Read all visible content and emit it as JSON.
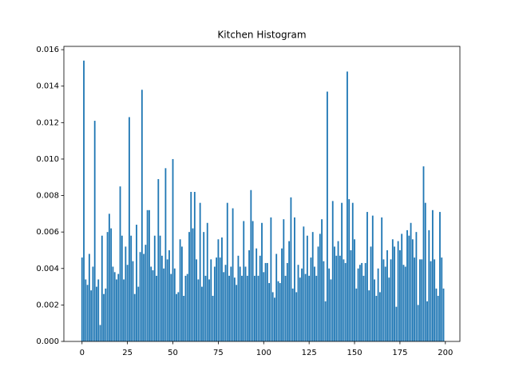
{
  "chart_data": {
    "type": "bar",
    "title": "Kitchen Histogram",
    "color": "#1f77b4",
    "bar_width": 0.8,
    "x": [
      0,
      1,
      2,
      3,
      4,
      5,
      6,
      7,
      8,
      9,
      10,
      11,
      12,
      13,
      14,
      15,
      16,
      17,
      18,
      19,
      20,
      21,
      22,
      23,
      24,
      25,
      26,
      27,
      28,
      29,
      30,
      31,
      32,
      33,
      34,
      35,
      36,
      37,
      38,
      39,
      40,
      41,
      42,
      43,
      44,
      45,
      46,
      47,
      48,
      49,
      50,
      51,
      52,
      53,
      54,
      55,
      56,
      57,
      58,
      59,
      60,
      61,
      62,
      63,
      64,
      65,
      66,
      67,
      68,
      69,
      70,
      71,
      72,
      73,
      74,
      75,
      76,
      77,
      78,
      79,
      80,
      81,
      82,
      83,
      84,
      85,
      86,
      87,
      88,
      89,
      90,
      91,
      92,
      93,
      94,
      95,
      96,
      97,
      98,
      99,
      100,
      101,
      102,
      103,
      104,
      105,
      106,
      107,
      108,
      109,
      110,
      111,
      112,
      113,
      114,
      115,
      116,
      117,
      118,
      119,
      120,
      121,
      122,
      123,
      124,
      125,
      126,
      127,
      128,
      129,
      130,
      131,
      132,
      133,
      134,
      135,
      136,
      137,
      138,
      139,
      140,
      141,
      142,
      143,
      144,
      145,
      146,
      147,
      148,
      149,
      150,
      151,
      152,
      153,
      154,
      155,
      156,
      157,
      158,
      159,
      160,
      161,
      162,
      163,
      164,
      165,
      166,
      167,
      168,
      169,
      170,
      171,
      172,
      173,
      174,
      175,
      176,
      177,
      178,
      179,
      180,
      181,
      182,
      183,
      184,
      185,
      186,
      187,
      188,
      189,
      190,
      191,
      192,
      193,
      194,
      195,
      196,
      197,
      198,
      199
    ],
    "values": [
      0.0046,
      0.0154,
      0.0034,
      0.0031,
      0.0048,
      0.0028,
      0.0041,
      0.0121,
      0.003,
      0.0034,
      0.0009,
      0.0058,
      0.0026,
      0.0029,
      0.006,
      0.007,
      0.0062,
      0.0041,
      0.0038,
      0.0034,
      0.0037,
      0.0085,
      0.0058,
      0.0034,
      0.0052,
      0.0042,
      0.0123,
      0.0058,
      0.0044,
      0.0026,
      0.0064,
      0.003,
      0.0049,
      0.0138,
      0.0048,
      0.0053,
      0.0072,
      0.0072,
      0.0041,
      0.0039,
      0.0058,
      0.0036,
      0.0089,
      0.0058,
      0.0047,
      0.004,
      0.0095,
      0.0045,
      0.005,
      0.0037,
      0.01,
      0.004,
      0.0026,
      0.0027,
      0.0056,
      0.0052,
      0.0025,
      0.0036,
      0.0037,
      0.006,
      0.0082,
      0.0062,
      0.0082,
      0.0045,
      0.0034,
      0.0076,
      0.003,
      0.006,
      0.0036,
      0.0065,
      0.0034,
      0.0045,
      0.0025,
      0.0041,
      0.0046,
      0.0056,
      0.0046,
      0.0057,
      0.0038,
      0.0042,
      0.0076,
      0.0036,
      0.0041,
      0.0073,
      0.0035,
      0.0031,
      0.0047,
      0.0041,
      0.0036,
      0.0066,
      0.0041,
      0.0036,
      0.005,
      0.0083,
      0.0066,
      0.0036,
      0.0051,
      0.0036,
      0.0047,
      0.0065,
      0.0038,
      0.0043,
      0.0043,
      0.0032,
      0.0068,
      0.0027,
      0.0024,
      0.0048,
      0.0033,
      0.0032,
      0.0051,
      0.0067,
      0.0036,
      0.0043,
      0.0055,
      0.0079,
      0.0029,
      0.0068,
      0.0027,
      0.0042,
      0.0035,
      0.004,
      0.0063,
      0.0037,
      0.0058,
      0.0036,
      0.0046,
      0.006,
      0.0041,
      0.0036,
      0.0052,
      0.0059,
      0.0067,
      0.0044,
      0.0022,
      0.0137,
      0.004,
      0.0034,
      0.0077,
      0.0052,
      0.0047,
      0.0055,
      0.0047,
      0.0076,
      0.0045,
      0.0043,
      0.0148,
      0.0078,
      0.005,
      0.0076,
      0.0056,
      0.0029,
      0.004,
      0.0042,
      0.0043,
      0.0036,
      0.0043,
      0.0071,
      0.0028,
      0.0052,
      0.0069,
      0.0034,
      0.0025,
      0.004,
      0.0027,
      0.0068,
      0.0045,
      0.0041,
      0.005,
      0.0035,
      0.0045,
      0.0056,
      0.0052,
      0.0019,
      0.0055,
      0.005,
      0.0059,
      0.0042,
      0.0041,
      0.0061,
      0.0058,
      0.0065,
      0.0056,
      0.0046,
      0.006,
      0.002,
      0.0045,
      0.0045,
      0.0096,
      0.0076,
      0.0022,
      0.0061,
      0.0044,
      0.0072,
      0.0045,
      0.0029,
      0.0025,
      0.0071,
      0.0046,
      0.0029
    ],
    "xlim": [
      -10,
      208
    ],
    "xticks": [
      0,
      25,
      50,
      75,
      100,
      125,
      150,
      175,
      200
    ],
    "ylim": [
      0,
      0.01618
    ],
    "yticks": [
      {
        "value": 0,
        "label": "0.000"
      },
      {
        "value": 0.002,
        "label": "0.002"
      },
      {
        "value": 0.004,
        "label": "0.004"
      },
      {
        "value": 0.006,
        "label": "0.006"
      },
      {
        "value": 0.008,
        "label": "0.008"
      },
      {
        "value": 0.01,
        "label": "0.010"
      },
      {
        "value": 0.012,
        "label": "0.012"
      },
      {
        "value": 0.014,
        "label": "0.014"
      },
      {
        "value": 0.016,
        "label": "0.016"
      }
    ]
  }
}
